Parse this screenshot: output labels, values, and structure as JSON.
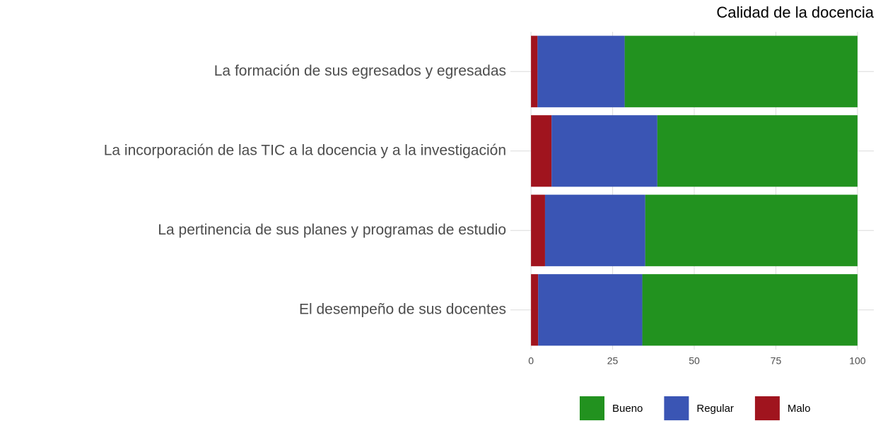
{
  "chart_data": {
    "type": "stacked_barh",
    "title": "Calidad de la docencia",
    "categories": [
      "La formación de sus egresados y egresadas",
      "La incorporación de las TIC a la docencia y a la investigación",
      "La pertinencia de sus planes y programas de estudio",
      "El desempeño de sus docentes"
    ],
    "series": [
      {
        "name": "Malo",
        "color": "#a0141e",
        "values": [
          2,
          6.3,
          4.3,
          2.2
        ]
      },
      {
        "name": "Regular",
        "color": "#3a55b4",
        "values": [
          26.7,
          32.4,
          30.7,
          31.9
        ]
      },
      {
        "name": "Bueno",
        "color": "#22921f",
        "values": [
          71.3,
          61.3,
          65,
          65.9
        ]
      }
    ],
    "legend_order": [
      "Bueno",
      "Regular",
      "Malo"
    ],
    "xlim": [
      -5,
      105
    ],
    "xticks": [
      0,
      25,
      50,
      75,
      100
    ],
    "grid": true,
    "legend": "bottom"
  }
}
